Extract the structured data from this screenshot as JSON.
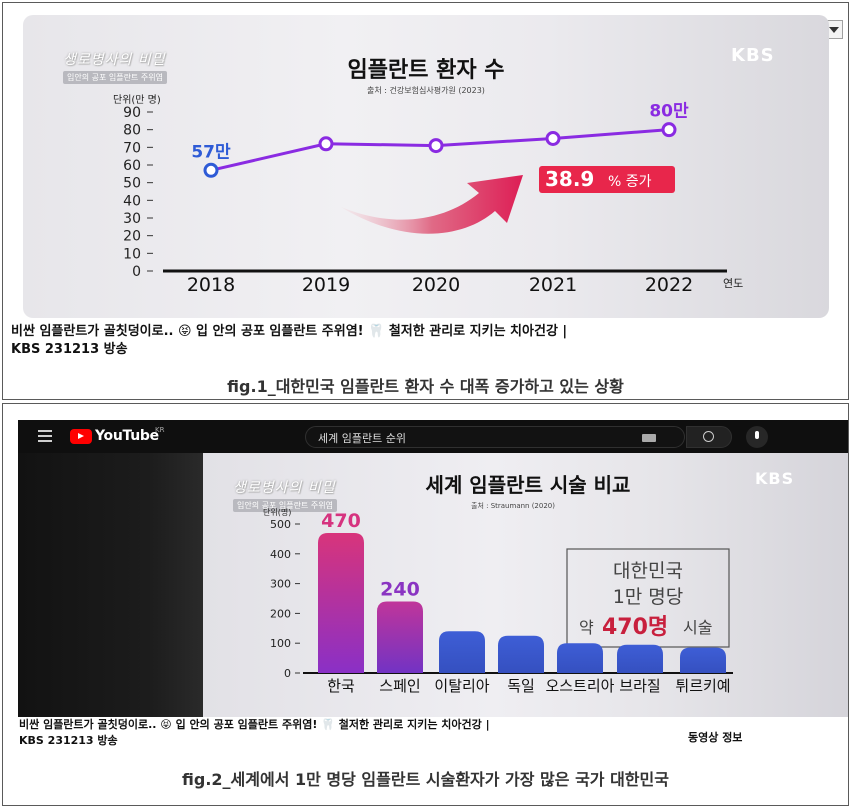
{
  "fig1": {
    "logo_line1": "생로병사의 비밀",
    "logo_line2": "입안의 공포 임플란트 주위염",
    "broadcaster": "KBS",
    "chart_title": "임플란트 환자 수",
    "source": "출처 : 건강보험심사평가원 (2023)",
    "highlight_text": "38.9",
    "highlight_suffix": "% 증가",
    "video_caption_line1": "비싼 임플란트가 골칫덩이로.. 😝 입 안의 공포 임플란트 주위염! 🦷 철저한 관리로 지키는 치아건강 |",
    "video_caption_line2": "KBS 231213 방송",
    "figure_caption": "fig.1_대한민국 임플란트 환자 수 대폭 증가하고 있는 상황"
  },
  "fig2": {
    "youtube_word": "YouTube",
    "youtube_region": "KR",
    "search_text": "세계 임플란트 순위",
    "logo_line1": "생로병사의 비밀",
    "logo_line2": "입안의 공포 임플란트 주위염",
    "broadcaster": "KBS",
    "chart_title": "세계 임플란트 시술 비교",
    "source": "출처 : Straumann (2020)",
    "box_line1": "대한민국",
    "box_line2": "1만 명당",
    "box_prefix": "약",
    "box_value": "470명",
    "box_suffix": "시술",
    "video_caption_line1": "비싼 임플란트가 골칫덩이로.. 😝 입 안의 공포 임플란트 주위염! 🦷 철저한 관리로 지키는 치아건강 |",
    "video_caption_line2": "KBS 231213 방송",
    "side_info": "동영상 정보",
    "figure_caption": "fig.2_세계에서 1만 명당 임플란트 시술환자가 가장 많은 국가 대한민국"
  },
  "colors": {
    "purple": "#8a2be2",
    "blue_label": "#2e5bd6",
    "red_box": "#e8264b",
    "bar_korea_top": "#d6337f",
    "bar_korea_bottom": "#8a2fc4",
    "bar_blue": "#3d5bd0"
  },
  "chart_data": [
    {
      "type": "line",
      "title": "임플란트 환자 수",
      "ylabel": "단위(만 명)",
      "xlabel": "연도",
      "x": [
        "2018",
        "2019",
        "2020",
        "2021",
        "2022"
      ],
      "values": [
        57,
        72,
        71,
        75,
        80
      ],
      "data_labels": [
        "57만",
        "",
        "",
        "",
        "80만"
      ],
      "yticks": [
        "0",
        "10",
        "20",
        "30",
        "40",
        "50",
        "60",
        "70",
        "80",
        "90"
      ],
      "ylim": [
        0,
        90
      ],
      "grid": false
    },
    {
      "type": "bar",
      "title": "세계 임플란트 시술 비교",
      "ylabel": "단위(명)",
      "categories": [
        "한국",
        "스페인",
        "이탈리아",
        "독일",
        "오스트리아",
        "브라질",
        "튀르키예"
      ],
      "values": [
        470,
        240,
        140,
        125,
        100,
        95,
        85
      ],
      "data_labels": [
        "470",
        "240",
        "",
        "",
        "",
        "",
        ""
      ],
      "yticks": [
        "0",
        "100",
        "200",
        "300",
        "400",
        "500"
      ],
      "ylim": [
        0,
        500
      ],
      "grid": false
    }
  ]
}
